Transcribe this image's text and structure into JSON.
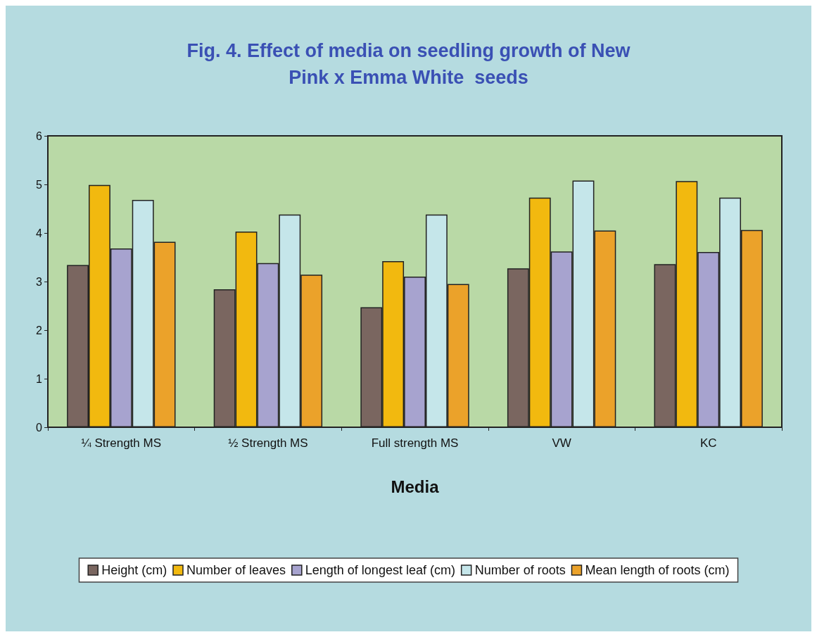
{
  "chart_data": {
    "type": "bar",
    "title": "Fig. 4. Effect of media on seedling growth of New\nPink x Emma White  seeds",
    "xlabel": "Media",
    "categories": [
      "¼ Strength MS",
      "½ Strength MS",
      "Full strength MS",
      "VW",
      "KC"
    ],
    "series": [
      {
        "name": "Height (cm)",
        "color": "#7a6660",
        "values": [
          3.34,
          2.84,
          2.47,
          3.27,
          3.36
        ]
      },
      {
        "name": "Number of leaves",
        "color": "#f2b90f",
        "values": [
          4.99,
          4.03,
          3.42,
          4.73,
          5.07
        ]
      },
      {
        "name": "Length of longest leaf (cm)",
        "color": "#a7a3cf",
        "values": [
          3.68,
          3.38,
          3.1,
          3.62,
          3.61
        ]
      },
      {
        "name": "Number of roots",
        "color": "#c5e6ea",
        "values": [
          4.68,
          4.38,
          4.38,
          5.08,
          4.73
        ]
      },
      {
        "name": "Mean length of roots (cm)",
        "color": "#eba22a",
        "values": [
          3.82,
          3.14,
          2.95,
          4.05,
          4.06
        ]
      }
    ],
    "ylim": [
      0,
      6
    ],
    "yticks": [
      0,
      1,
      2,
      3,
      4,
      5,
      6
    ],
    "grid": false,
    "legend": "bottom"
  }
}
